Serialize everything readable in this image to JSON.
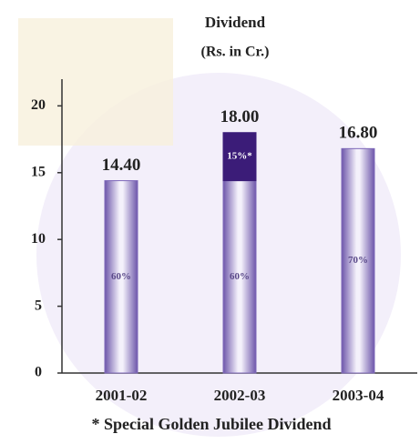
{
  "chart_data": {
    "type": "stacked-bar",
    "title": "Dividend",
    "subtitle": "(Rs. in Cr.)",
    "categories": [
      "2001-02",
      "2002-03",
      "2003-04"
    ],
    "series": [
      {
        "color": "#7e68b8",
        "values": [
          14.4,
          14.4,
          16.8
        ],
        "value_labels": [
          "60%",
          "60%",
          "70%"
        ]
      },
      {
        "color": "#3b1c78",
        "values": [
          null,
          3.6,
          null
        ],
        "value_labels": [
          null,
          "15%*",
          null
        ]
      }
    ],
    "totals": [
      14.4,
      18.0,
      16.8
    ],
    "total_labels": [
      "14.40",
      "18.00",
      "16.80"
    ],
    "ylim": [
      0,
      22
    ],
    "yticks": [
      0,
      5,
      10,
      15,
      20
    ],
    "footnote": "* Special Golden Jubilee Dividend"
  }
}
